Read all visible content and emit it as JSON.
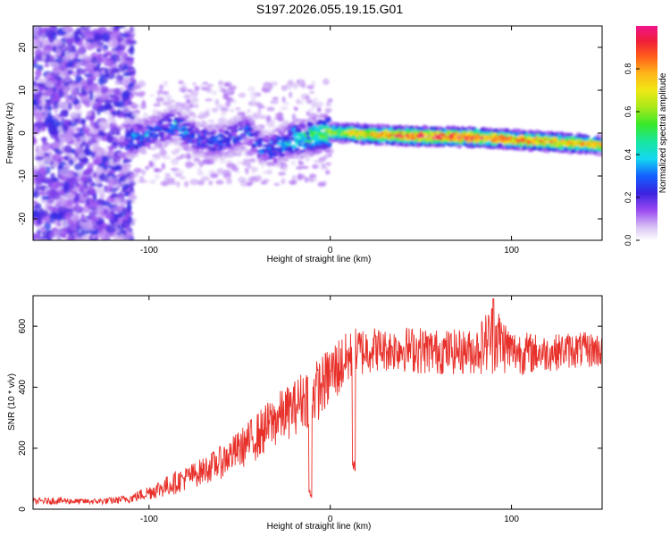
{
  "title": "S197.2026.055.19.15.G01",
  "chart_data": [
    {
      "type": "heatmap",
      "xlabel": "Height of straight line (km)",
      "ylabel": "Frequency (Hz)",
      "xlim": [
        -164,
        150
      ],
      "ylim": [
        -25,
        25
      ],
      "xticks": [
        -100,
        0,
        100
      ],
      "yticks": [
        -20,
        -10,
        0,
        10,
        20
      ],
      "colorbar": {
        "label": "Normalized spectral amplitude",
        "ticks": [
          "0.0",
          "0.2",
          "0.4",
          "0.6",
          "0.8"
        ],
        "range": [
          0,
          1
        ]
      },
      "ridge": {
        "description_points_x_km": [
          -110,
          -95,
          -85,
          -75,
          -65,
          -55,
          -45,
          -40,
          -35,
          -30,
          -25,
          -20,
          -10,
          0,
          10,
          20,
          40,
          60,
          80,
          100,
          120,
          140,
          150
        ],
        "frequency_hz": [
          -1.5,
          0.5,
          2.0,
          -1.0,
          -2.0,
          -1.5,
          0.5,
          -2.5,
          -4.0,
          -3.5,
          -2.0,
          -1.5,
          -0.8,
          0.2,
          0.0,
          -0.3,
          -0.6,
          -0.8,
          -1.0,
          -1.5,
          -2.0,
          -2.5,
          -2.8
        ],
        "peak_amplitude": [
          0.35,
          0.3,
          0.35,
          0.3,
          0.3,
          0.3,
          0.3,
          0.3,
          0.3,
          0.35,
          0.4,
          0.45,
          0.5,
          0.6,
          0.75,
          0.8,
          0.9,
          1.0,
          0.95,
          0.9,
          0.85,
          0.8,
          0.75
        ]
      }
    },
    {
      "type": "line",
      "xlabel": "Height of straight line (km)",
      "ylabel": "SNR (10 * v/v)",
      "xlim": [
        -164,
        150
      ],
      "ylim": [
        0,
        700
      ],
      "xticks": [
        -100,
        0,
        100
      ],
      "yticks": [
        0,
        200,
        400,
        600
      ],
      "series": [
        {
          "name": "SNR",
          "color": "#e8302a",
          "x": [
            -164,
            -150,
            -140,
            -130,
            -120,
            -110,
            -100,
            -90,
            -80,
            -70,
            -60,
            -50,
            -40,
            -30,
            -20,
            -15,
            -10,
            -5,
            0,
            5,
            10,
            15,
            20,
            25,
            30,
            40,
            50,
            60,
            70,
            80,
            90,
            100,
            110,
            120,
            130,
            140,
            150
          ],
          "envelope_low": [
            15,
            15,
            15,
            15,
            15,
            20,
            30,
            40,
            60,
            80,
            100,
            130,
            160,
            200,
            240,
            260,
            270,
            300,
            330,
            360,
            400,
            420,
            440,
            450,
            450,
            450,
            440,
            440,
            440,
            440,
            440,
            440,
            440,
            450,
            460,
            460,
            460
          ],
          "envelope_high": [
            35,
            40,
            35,
            35,
            40,
            50,
            80,
            110,
            140,
            170,
            210,
            260,
            320,
            380,
            420,
            460,
            480,
            500,
            540,
            570,
            580,
            600,
            600,
            600,
            590,
            600,
            600,
            590,
            590,
            590,
            690,
            590,
            580,
            570,
            580,
            580,
            580
          ],
          "values": [
            25,
            25,
            25,
            25,
            25,
            30,
            45,
            60,
            90,
            120,
            150,
            190,
            240,
            280,
            320,
            350,
            380,
            400,
            430,
            460,
            490,
            510,
            520,
            520,
            510,
            515,
            515,
            510,
            505,
            505,
            500,
            505,
            500,
            505,
            500,
            500,
            500
          ]
        }
      ]
    }
  ]
}
